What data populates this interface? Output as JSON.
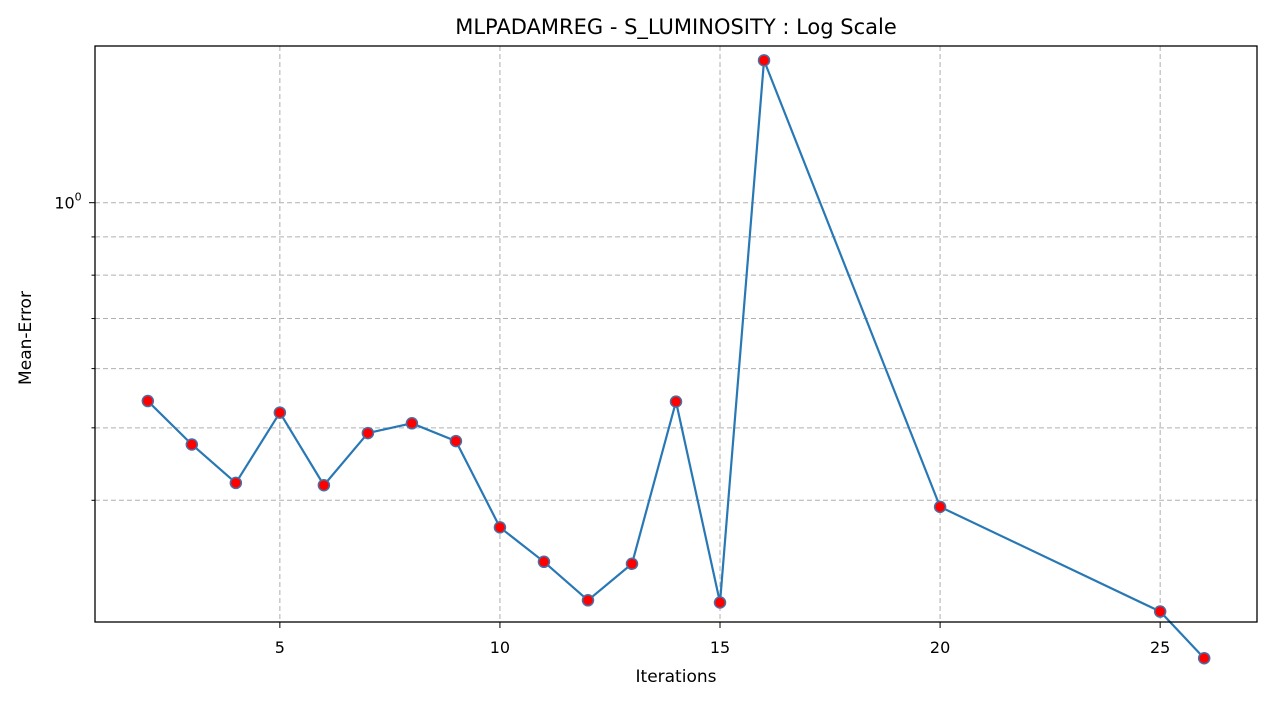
{
  "chart_data": {
    "type": "line",
    "title": "MLPADAMREG - S_LUMINOSITY : Log Scale",
    "xlabel": "Iterations",
    "ylabel": "Mean-Error",
    "yscale": "log",
    "xlim": [
      0.8,
      27.2
    ],
    "ylim": [
      0.275,
      1.62
    ],
    "x_ticks": [
      5,
      10,
      15,
      20,
      25
    ],
    "y_major_ticks": [
      {
        "value": 1.0,
        "label": "10",
        "exponent": "0"
      }
    ],
    "y_minor_ticks": [
      0.4,
      0.5,
      0.6,
      0.7,
      0.8,
      0.9,
      2.0
    ],
    "grid": true,
    "line_color": "#2878b5",
    "marker_face_color": "#ff0000",
    "marker_edge_color": "#4a6fa5",
    "series": [
      {
        "x": [
          2,
          3,
          4,
          5,
          6,
          7,
          8,
          9,
          10,
          11,
          12,
          13,
          14,
          15,
          16,
          20,
          25,
          26
        ],
        "values": [
          0.543,
          0.475,
          0.422,
          0.524,
          0.419,
          0.492,
          0.507,
          0.48,
          0.368,
          0.331,
          0.294,
          0.329,
          0.542,
          0.292,
          1.55,
          0.392,
          0.284,
          0.246
        ]
      }
    ]
  }
}
